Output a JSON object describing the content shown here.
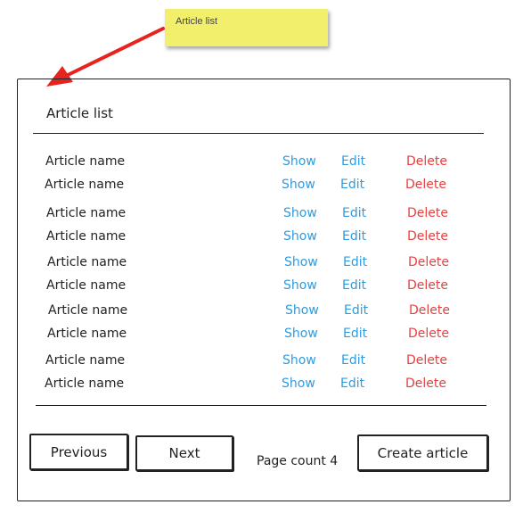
{
  "note": {
    "text": "Article list"
  },
  "page": {
    "title": "Article list"
  },
  "articles": [
    {
      "name": "Article name",
      "show": "Show",
      "edit": "Edit",
      "delete": "Delete"
    },
    {
      "name": "Article name",
      "show": "Show",
      "edit": "Edit",
      "delete": "Delete"
    },
    {
      "name": "Article name",
      "show": "Show",
      "edit": "Edit",
      "delete": "Delete"
    },
    {
      "name": "Article name",
      "show": "Show",
      "edit": "Edit",
      "delete": "Delete"
    },
    {
      "name": "Article name",
      "show": "Show",
      "edit": "Edit",
      "delete": "Delete"
    },
    {
      "name": "Article name",
      "show": "Show",
      "edit": "Edit",
      "delete": "Delete"
    },
    {
      "name": "Article name",
      "show": "Show",
      "edit": "Edit",
      "delete": "Delete"
    },
    {
      "name": "Article name",
      "show": "Show",
      "edit": "Edit",
      "delete": "Delete"
    },
    {
      "name": "Article name",
      "show": "Show",
      "edit": "Edit",
      "delete": "Delete"
    },
    {
      "name": "Article name",
      "show": "Show",
      "edit": "Edit",
      "delete": "Delete"
    }
  ],
  "pagination": {
    "previous_label": "Previous",
    "next_label": "Next",
    "page_count_text": "Page count 4"
  },
  "actions": {
    "create_label": "Create article"
  },
  "colors": {
    "link": "#2f9be0",
    "delete": "#e84040",
    "note": "#f2ef6c",
    "arrow": "#e8231f"
  }
}
